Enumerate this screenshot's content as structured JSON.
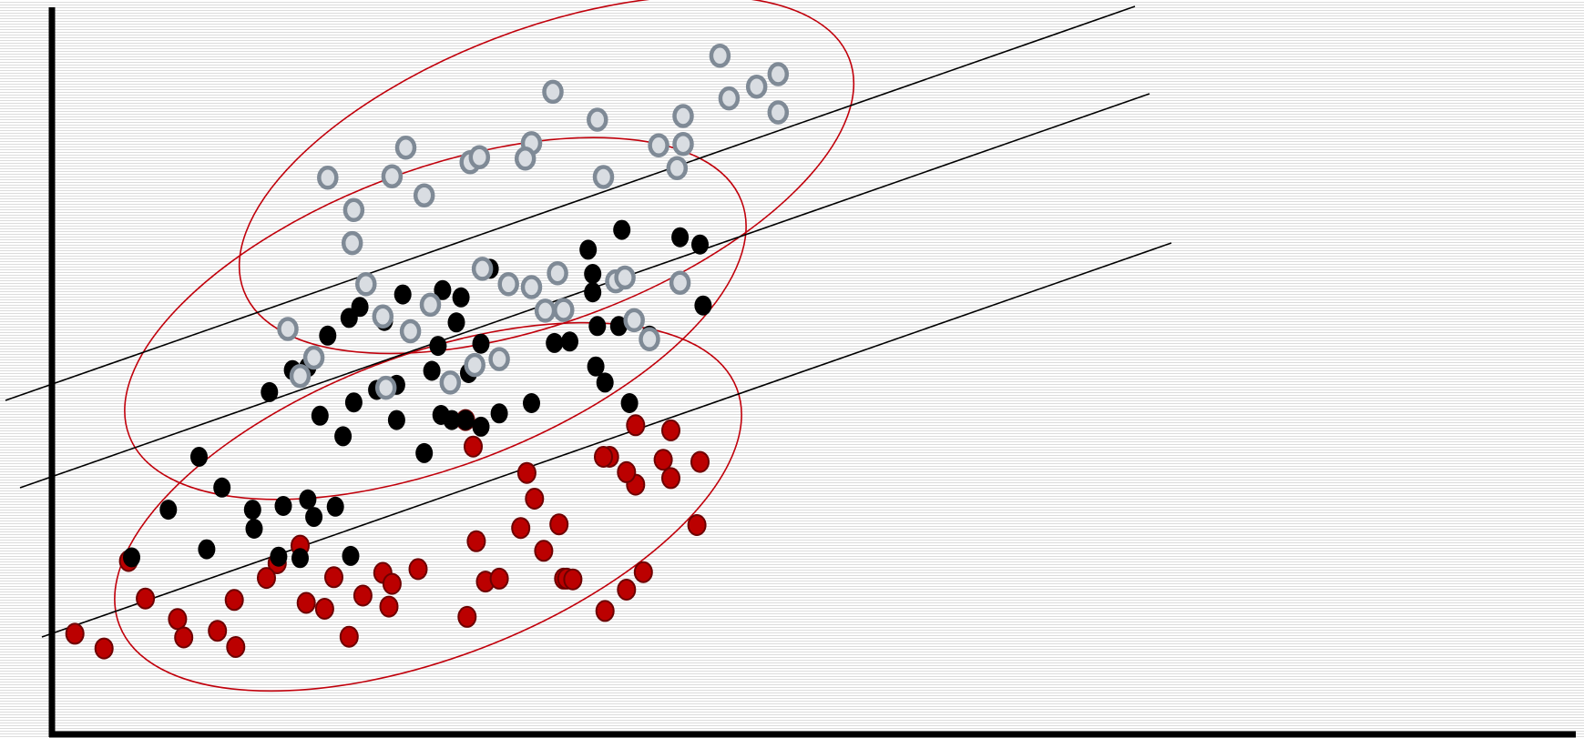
{
  "chart_data": {
    "type": "scatter",
    "title": "",
    "xlabel": "",
    "ylabel": "",
    "xlim": [
      0,
      100
    ],
    "ylim": [
      0,
      100
    ],
    "grid": false,
    "legend": "none",
    "series": [
      {
        "style": "gray-ring",
        "color": "#7f8a96",
        "points": [
          [
            43.6,
            92.4
          ],
          [
            47.4,
            89.9
          ],
          [
            47.4,
            84.7
          ],
          [
            46.0,
            88.2
          ],
          [
            44.2,
            86.6
          ],
          [
            41.2,
            84.2
          ],
          [
            41.2,
            80.4
          ],
          [
            40.8,
            77.1
          ],
          [
            39.6,
            80.2
          ],
          [
            36.0,
            75.9
          ],
          [
            35.6,
            83.7
          ],
          [
            32.7,
            87.5
          ],
          [
            31.3,
            80.5
          ],
          [
            27.3,
            77.9
          ],
          [
            27.9,
            78.6
          ],
          [
            30.9,
            78.4
          ],
          [
            23.1,
            79.9
          ],
          [
            24.3,
            73.4
          ],
          [
            22.2,
            76.0
          ],
          [
            19.7,
            71.4
          ],
          [
            18.0,
            75.8
          ],
          [
            19.6,
            66.9
          ],
          [
            20.5,
            61.3
          ],
          [
            21.6,
            56.9
          ],
          [
            23.4,
            54.9
          ],
          [
            24.7,
            58.5
          ],
          [
            17.1,
            51.3
          ],
          [
            15.4,
            55.2
          ],
          [
            16.2,
            48.8
          ],
          [
            21.8,
            47.2
          ],
          [
            26.0,
            47.9
          ],
          [
            27.6,
            50.3
          ],
          [
            29.2,
            51.1
          ],
          [
            31.3,
            60.9
          ],
          [
            32.2,
            57.7
          ],
          [
            29.8,
            61.3
          ],
          [
            33.4,
            57.8
          ],
          [
            33.0,
            62.8
          ],
          [
            36.8,
            61.7
          ],
          [
            37.4,
            62.2
          ],
          [
            41.0,
            61.5
          ],
          [
            38.0,
            56.4
          ],
          [
            39.0,
            53.8
          ],
          [
            28.1,
            63.4
          ]
        ]
      },
      {
        "style": "black",
        "color": "#000000",
        "points": [
          [
            37.2,
            68.7
          ],
          [
            41.0,
            67.7
          ],
          [
            42.3,
            66.7
          ],
          [
            35.0,
            66.0
          ],
          [
            35.3,
            62.7
          ],
          [
            35.3,
            60.2
          ],
          [
            25.5,
            60.5
          ],
          [
            26.7,
            59.5
          ],
          [
            28.6,
            63.4
          ],
          [
            22.9,
            59.9
          ],
          [
            20.1,
            58.2
          ],
          [
            21.7,
            56.3
          ],
          [
            25.2,
            52.9
          ],
          [
            35.6,
            55.6
          ],
          [
            33.8,
            53.5
          ],
          [
            42.5,
            58.4
          ],
          [
            37.0,
            55.6
          ],
          [
            39.0,
            54.3
          ],
          [
            32.8,
            53.3
          ],
          [
            28.0,
            53.2
          ],
          [
            26.4,
            56.1
          ],
          [
            24.8,
            49.5
          ],
          [
            19.4,
            56.7
          ],
          [
            18.0,
            54.3
          ],
          [
            15.7,
            49.6
          ],
          [
            16.7,
            50.0
          ],
          [
            14.2,
            46.6
          ],
          [
            19.7,
            45.2
          ],
          [
            21.2,
            46.9
          ],
          [
            9.6,
            37.8
          ],
          [
            11.1,
            33.6
          ],
          [
            13.1,
            30.6
          ],
          [
            5.2,
            24.1
          ],
          [
            7.6,
            30.6
          ],
          [
            15.1,
            31.1
          ],
          [
            22.5,
            47.6
          ],
          [
            25.4,
            43.5
          ],
          [
            35.5,
            50.1
          ],
          [
            31.3,
            45.1
          ],
          [
            37.7,
            45.1
          ],
          [
            36.1,
            47.9
          ],
          [
            27.2,
            49.2
          ],
          [
            24.3,
            38.3
          ],
          [
            22.5,
            42.8
          ],
          [
            16.7,
            32.0
          ],
          [
            17.5,
            43.4
          ],
          [
            19.0,
            40.6
          ],
          [
            26.1,
            42.8
          ],
          [
            27.0,
            42.8
          ],
          [
            29.2,
            43.7
          ],
          [
            28.0,
            41.9
          ],
          [
            17.1,
            29.6
          ],
          [
            18.5,
            31.0
          ],
          [
            16.2,
            24.0
          ],
          [
            19.5,
            24.3
          ],
          [
            10.1,
            25.2
          ],
          [
            14.8,
            24.2
          ],
          [
            13.2,
            28.0
          ]
        ]
      },
      {
        "style": "red",
        "color": "#bb0000",
        "points": [
          [
            36.4,
            37.8
          ],
          [
            38.1,
            42.1
          ],
          [
            40.4,
            41.4
          ],
          [
            39.9,
            37.4
          ],
          [
            38.1,
            34.0
          ],
          [
            40.4,
            34.9
          ],
          [
            36.0,
            37.8
          ],
          [
            27.0,
            42.8
          ],
          [
            27.5,
            39.2
          ],
          [
            31.5,
            32.1
          ],
          [
            30.6,
            28.1
          ],
          [
            27.7,
            26.3
          ],
          [
            32.1,
            25.0
          ],
          [
            21.6,
            22.0
          ],
          [
            23.9,
            22.5
          ],
          [
            22.2,
            20.5
          ],
          [
            18.4,
            21.4
          ],
          [
            16.2,
            25.7
          ],
          [
            14.7,
            23.3
          ],
          [
            14.0,
            21.3
          ],
          [
            11.9,
            18.3
          ],
          [
            12.0,
            11.9
          ],
          [
            10.8,
            14.1
          ],
          [
            8.2,
            15.7
          ],
          [
            6.1,
            18.5
          ],
          [
            5.0,
            23.6
          ],
          [
            3.4,
            11.7
          ],
          [
            1.5,
            13.7
          ],
          [
            8.6,
            13.2
          ],
          [
            19.4,
            13.3
          ],
          [
            16.6,
            17.9
          ],
          [
            17.8,
            17.1
          ],
          [
            20.3,
            18.9
          ],
          [
            22.0,
            17.4
          ],
          [
            27.1,
            16.0
          ],
          [
            28.3,
            20.8
          ],
          [
            29.2,
            21.2
          ],
          [
            33.4,
            21.2
          ],
          [
            33.6,
            21.2
          ],
          [
            34.0,
            21.1
          ],
          [
            33.1,
            28.6
          ],
          [
            42.1,
            28.5
          ],
          [
            36.1,
            16.8
          ],
          [
            37.5,
            19.7
          ],
          [
            38.6,
            22.1
          ],
          [
            31.0,
            35.6
          ],
          [
            37.5,
            35.7
          ],
          [
            42.3,
            37.1
          ]
        ]
      }
    ]
  }
}
